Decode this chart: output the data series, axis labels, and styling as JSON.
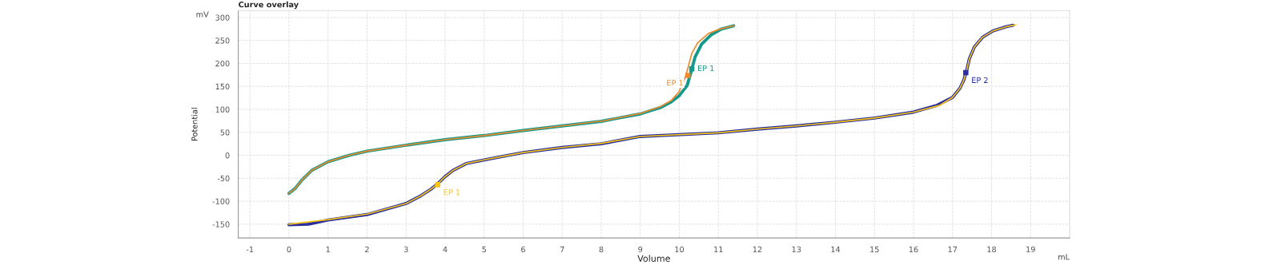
{
  "chart_data": {
    "type": "line",
    "title": "Curve overlay",
    "xlabel": "Volume",
    "ylabel": "Potential",
    "annotations": [
      "mV",
      "mL",
      {
        "text": "EP 1",
        "x": 10.22,
        "y": 174
      },
      {
        "text": "EP 1",
        "x": 10.32,
        "y": 188
      },
      {
        "text": "EP 1",
        "x": 3.81,
        "y": -64
      },
      {
        "text": "EP 2",
        "x": 17.34,
        "y": 180
      }
    ],
    "xlim": [
      -1.3,
      20
    ],
    "ylim": [
      -180,
      315
    ],
    "xticks": [
      -1,
      0,
      1,
      2,
      3,
      4,
      5,
      6,
      7,
      8,
      9,
      10,
      11,
      12,
      13,
      14,
      15,
      16,
      17,
      18,
      19
    ],
    "yticks": [
      -150,
      -100,
      -50,
      0,
      50,
      100,
      150,
      200,
      250,
      300
    ],
    "grid": true,
    "marker": "none",
    "line_style": "solid",
    "series": [
      {
        "color": "#16998a",
        "x": [
          0,
          0.17,
          0.34,
          0.58,
          1.0,
          1.54,
          2.0,
          3.0,
          4.0,
          5.0,
          6.0,
          7.0,
          8.0,
          9.0,
          9.52,
          9.79,
          9.99,
          10.2,
          10.3,
          10.4,
          10.57,
          10.81,
          11.08,
          11.39
        ],
        "values": [
          -83,
          -71,
          -53,
          -33,
          -14,
          0,
          9,
          22,
          34,
          43,
          54,
          64,
          74,
          90,
          104,
          116,
          129,
          152,
          181,
          213,
          242,
          262,
          275,
          282
        ]
      },
      {
        "color": "#ee8a2c",
        "x": [
          0,
          0.17,
          0.34,
          0.58,
          1.0,
          1.54,
          2.0,
          3.0,
          4.0,
          5.0,
          6.0,
          7.0,
          7.95,
          8.0,
          9.0,
          9.52,
          9.79,
          9.99,
          10.13,
          10.22,
          10.32,
          10.47,
          10.74,
          11.01,
          11.39
        ],
        "values": [
          -83,
          -71,
          -53,
          -33,
          -14,
          0,
          9,
          22,
          34,
          43,
          54,
          64,
          74,
          74,
          91,
          106,
          119,
          138,
          164,
          190,
          222,
          245,
          265,
          274,
          282
        ]
      },
      {
        "color": "#2b2f9e",
        "x": [
          0,
          0.5,
          1.0,
          2.0,
          3.0,
          3.38,
          3.65,
          3.81,
          3.99,
          4.2,
          4.54,
          5.0,
          5.56,
          6.0,
          7.0,
          8.0,
          9.0,
          11.0,
          12.0,
          13.0,
          14.0,
          15.0,
          16.0,
          16.61,
          17.0,
          17.19,
          17.29,
          17.36,
          17.43,
          17.56,
          17.77,
          18.04,
          18.38,
          18.55
        ],
        "values": [
          -151,
          -150,
          -141,
          -129,
          -105,
          -88,
          -73,
          -62,
          -47,
          -33,
          -18,
          -10,
          -1,
          6,
          17,
          25,
          41,
          49,
          57,
          64,
          72,
          81,
          94,
          109,
          126,
          146,
          164,
          184,
          210,
          236,
          257,
          271,
          280,
          283
        ]
      },
      {
        "color": "#f5c518",
        "x": [
          0,
          1.0,
          2.0,
          3.0,
          3.38,
          3.65,
          3.81,
          3.99,
          4.2,
          4.54,
          5.0,
          5.56,
          6.0,
          7.0,
          8.0,
          9.0,
          11.0,
          12.0,
          13.0,
          14.0,
          15.0,
          16.0,
          16.68,
          17.0,
          17.19,
          17.29,
          17.36,
          17.43,
          17.56,
          17.77,
          18.04,
          18.38,
          18.62
        ],
        "values": [
          -150,
          -140,
          -128,
          -105,
          -88,
          -73,
          -62,
          -47,
          -33,
          -18,
          -10,
          -1,
          6,
          17,
          26,
          41,
          49,
          57,
          64,
          72,
          81,
          94,
          109,
          126,
          146,
          164,
          184,
          210,
          236,
          257,
          271,
          280,
          284
        ]
      },
      {
        "type": "scatter",
        "marker": "square",
        "color": "#ee8a2c",
        "x": [
          10.22
        ],
        "values": [
          174
        ]
      },
      {
        "type": "scatter",
        "marker": "square",
        "color": "#16998a",
        "x": [
          10.32
        ],
        "values": [
          188
        ]
      },
      {
        "type": "scatter",
        "marker": "square",
        "color": "#f5c518",
        "x": [
          3.81
        ],
        "values": [
          -64
        ]
      },
      {
        "type": "scatter",
        "marker": "square",
        "color": "#2b2f9e",
        "x": [
          17.34
        ],
        "values": [
          180
        ]
      }
    ]
  }
}
